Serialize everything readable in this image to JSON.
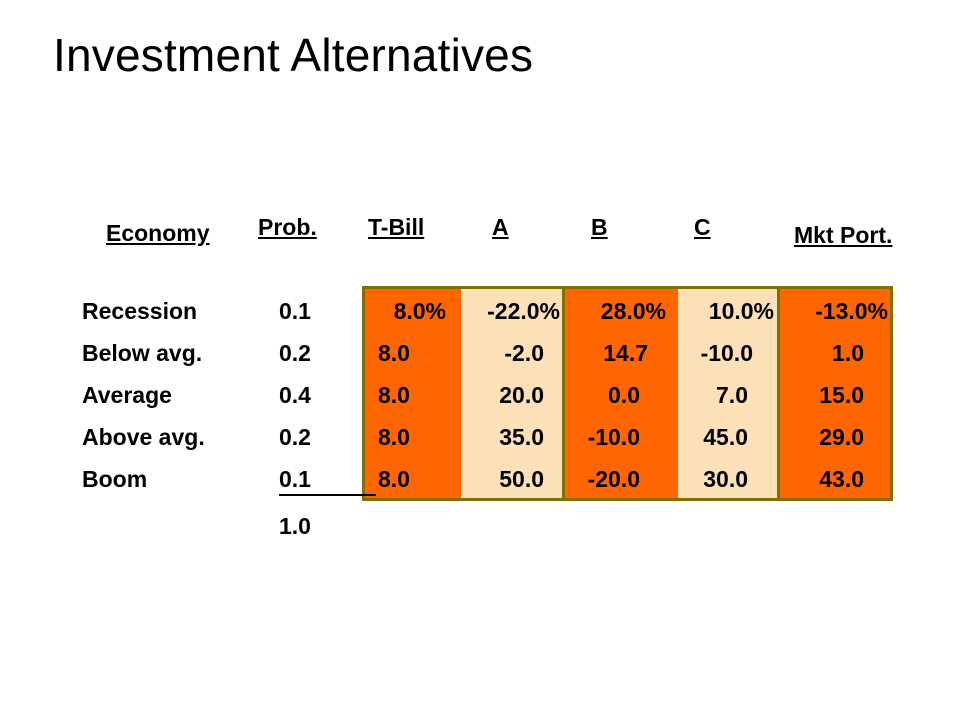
{
  "title": "Investment Alternatives",
  "headers": {
    "economy": "Economy",
    "prob": "Prob.",
    "tbill": "T-Bill",
    "a": "A",
    "b": "B",
    "c": "C",
    "mkt": "Mkt Port."
  },
  "colors": {
    "orange": "#ff6600",
    "peach": "#fbe0b8",
    "olive_border": "#807000"
  },
  "rows": [
    {
      "economy": "Recession",
      "prob": "0.1",
      "tbill": "8.0%",
      "a": "-22.0%",
      "b": "28.0%",
      "c": "10.0%",
      "mkt": "-13.0%"
    },
    {
      "economy": "Below avg.",
      "prob": "0.2",
      "tbill": "8.0",
      "a": "-2.0",
      "b": "14.7",
      "c": "-10.0",
      "mkt": "1.0"
    },
    {
      "economy": "Average",
      "prob": "0.4",
      "tbill": "8.0",
      "a": "20.0",
      "b": "0.0",
      "c": "7.0",
      "mkt": "15.0"
    },
    {
      "economy": "Above avg.",
      "prob": "0.2",
      "tbill": "8.0",
      "a": "35.0",
      "b": "-10.0",
      "c": "45.0",
      "mkt": "29.0"
    },
    {
      "economy": "Boom",
      "prob": "0.1",
      "tbill": "8.0",
      "a": "50.0",
      "b": "-20.0",
      "c": "30.0",
      "mkt": "43.0"
    }
  ],
  "prob_total": "1.0"
}
